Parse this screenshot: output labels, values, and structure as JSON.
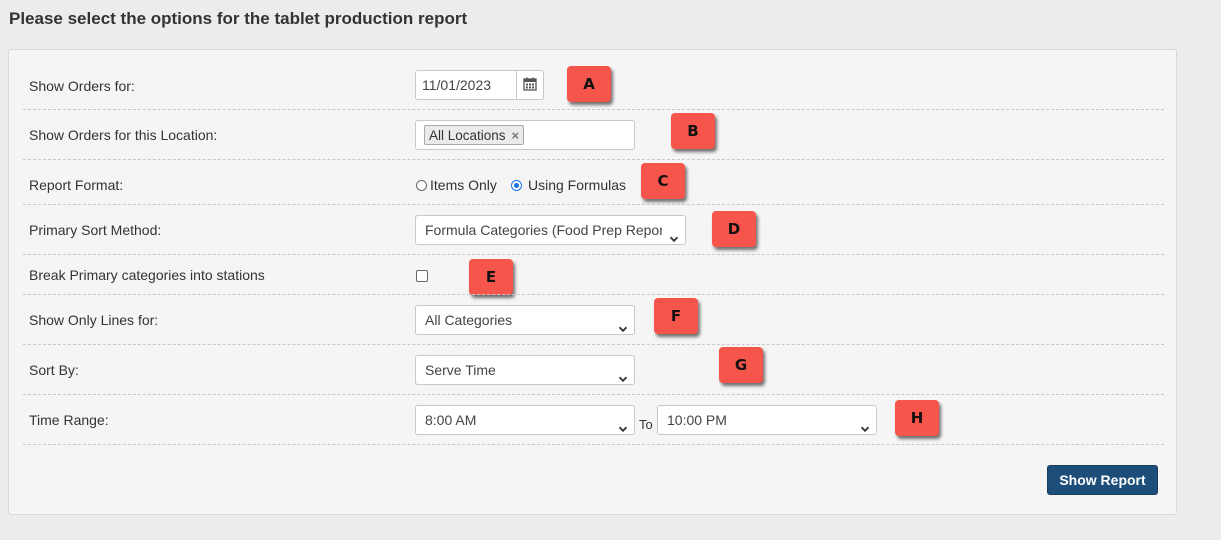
{
  "page": {
    "title": "Please select the options for the tablet production report"
  },
  "form": {
    "show_orders_for": {
      "label": "Show Orders for:",
      "date_value": "11/01/2023"
    },
    "location": {
      "label": "Show Orders for this Location:",
      "chip_label": "All Locations",
      "chip_remove": "×"
    },
    "report_format": {
      "label": "Report Format:",
      "option_items": "Items Only",
      "option_formulas": "Using Formulas",
      "selected": "Using Formulas"
    },
    "primary_sort": {
      "label": "Primary Sort Method:",
      "selected": "Formula Categories (Food Prep Report)"
    },
    "break_primary": {
      "label": "Break Primary categories into stations",
      "checked": false
    },
    "show_only_lines": {
      "label": "Show Only Lines for:",
      "selected": "All Categories"
    },
    "sort_by": {
      "label": "Sort By:",
      "selected": "Serve Time"
    },
    "time_range": {
      "label": "Time Range:",
      "start": "8:00 AM",
      "to_label": "To",
      "end": "10:00 PM"
    },
    "submit_label": "Show Report"
  },
  "annotations": [
    "A",
    "B",
    "C",
    "D",
    "E",
    "F",
    "G",
    "H"
  ],
  "colors": {
    "marker": "#f5554a",
    "button": "#1d4e7a",
    "panel": "#f5f5f5",
    "background": "#ececec",
    "radio_accent": "#1a73e8"
  },
  "icons": {
    "date_button": "calendar-icon",
    "select_caret": "chevron-down-icon",
    "chip_remove": "close-icon"
  }
}
